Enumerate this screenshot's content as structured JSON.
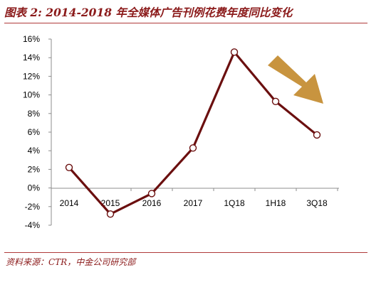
{
  "figure": {
    "title": "图表 2: 2014-2018 年全媒体广告刊例花费年度同比变化",
    "source": "资料来源：CTR，中金公司研究部"
  },
  "chart_data": {
    "type": "line",
    "title": "",
    "xlabel": "",
    "ylabel": "",
    "categories": [
      "2014",
      "2015",
      "2016",
      "2017",
      "1Q18",
      "1H18",
      "3Q18"
    ],
    "values": [
      2.2,
      -2.8,
      -0.6,
      4.3,
      14.6,
      9.3,
      5.7
    ],
    "ylim": [
      -4,
      16
    ],
    "yticks": [
      -4,
      -2,
      0,
      2,
      4,
      6,
      8,
      10,
      12,
      14,
      16
    ],
    "ytick_labels": [
      "-4%",
      "-2%",
      "0%",
      "2%",
      "4%",
      "6%",
      "8%",
      "10%",
      "12%",
      "14%",
      "16%"
    ],
    "grid": false,
    "legend": "none",
    "annotation": "downward-arrow",
    "colors": {
      "line": "#6b0f0f",
      "marker_fill": "#ffffff",
      "arrow": "#c8943f",
      "title": "#8b1a1a"
    }
  }
}
